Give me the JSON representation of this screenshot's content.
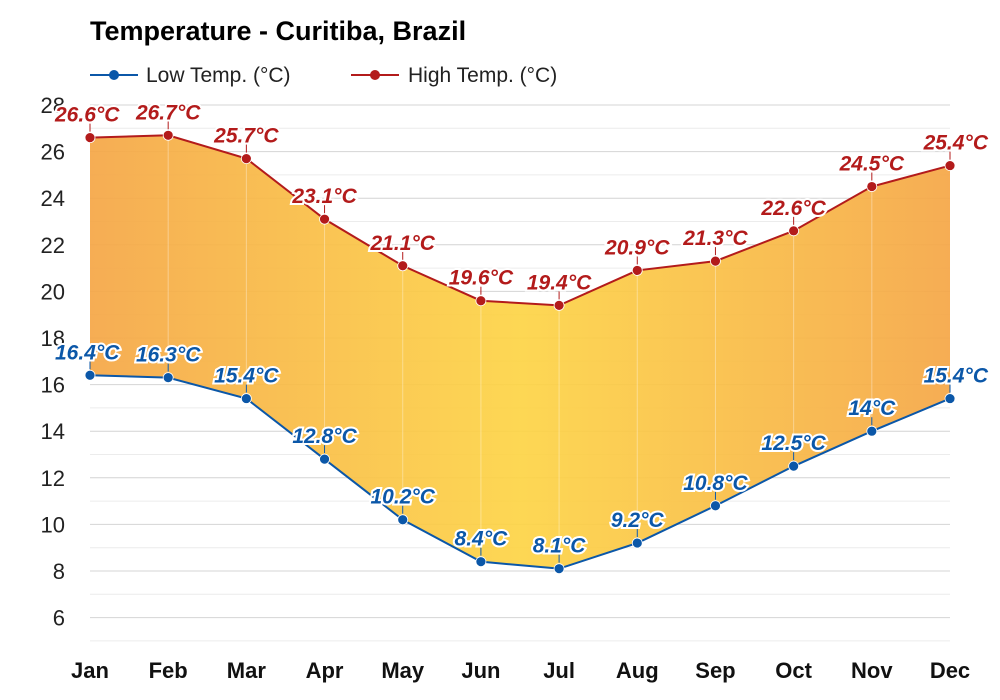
{
  "chart_data": {
    "type": "area",
    "title": "Temperature - Curitiba, Brazil",
    "xlabel": "",
    "ylabel": "",
    "ylim": [
      5,
      28
    ],
    "yticks": [
      6,
      8,
      10,
      12,
      14,
      16,
      18,
      20,
      22,
      24,
      26,
      28
    ],
    "grid": true,
    "legend_position": "top-left",
    "categories": [
      "Jan",
      "Feb",
      "Mar",
      "Apr",
      "May",
      "Jun",
      "Jul",
      "Aug",
      "Sep",
      "Oct",
      "Nov",
      "Dec"
    ],
    "series": [
      {
        "name": "Low Temp. (°C)",
        "color": "#0b57a8",
        "values": [
          16.4,
          16.3,
          15.4,
          12.8,
          10.2,
          8.4,
          8.1,
          9.2,
          10.8,
          12.5,
          14,
          15.4
        ],
        "labels": [
          "16.4°C",
          "16.3°C",
          "15.4°C",
          "12.8°C",
          "10.2°C",
          "8.4°C",
          "8.1°C",
          "9.2°C",
          "10.8°C",
          "12.5°C",
          "14°C",
          "15.4°C"
        ]
      },
      {
        "name": "High Temp. (°C)",
        "color": "#b31b1b",
        "values": [
          26.6,
          26.7,
          25.7,
          23.1,
          21.1,
          19.6,
          19.4,
          20.9,
          21.3,
          22.6,
          24.5,
          25.4
        ],
        "labels": [
          "26.6°C",
          "26.7°C",
          "25.7°C",
          "23.1°C",
          "21.1°C",
          "19.6°C",
          "19.4°C",
          "20.9°C",
          "21.3°C",
          "22.6°C",
          "24.5°C",
          "25.4°C"
        ]
      }
    ],
    "fill_colors": [
      "#f5a646",
      "#fdd445"
    ]
  }
}
